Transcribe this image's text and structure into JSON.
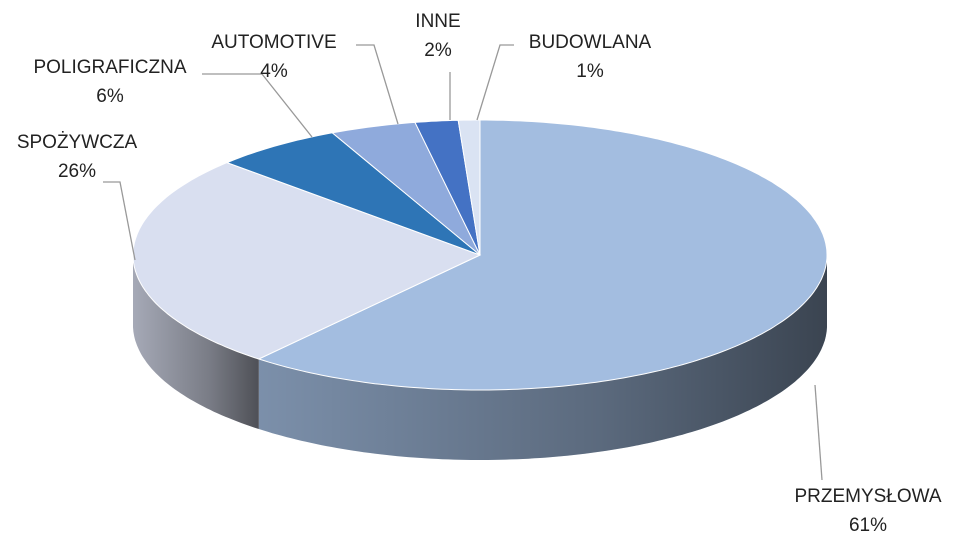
{
  "chart_data": {
    "type": "pie",
    "categories": [
      "PRZEMYSŁOWA",
      "SPOŻYWCZA",
      "POLIGRAFICZNA",
      "AUTOMOTIVE",
      "INNE",
      "BUDOWLANA"
    ],
    "values": [
      61,
      26,
      6,
      4,
      2,
      1
    ],
    "value_labels": [
      "61%",
      "26%",
      "6%",
      "4%",
      "2%",
      "1%"
    ],
    "colors": [
      "#a3bde0",
      "#d9dff0",
      "#2e75b6",
      "#8faadc",
      "#4472c4",
      "#dae3f3"
    ]
  }
}
